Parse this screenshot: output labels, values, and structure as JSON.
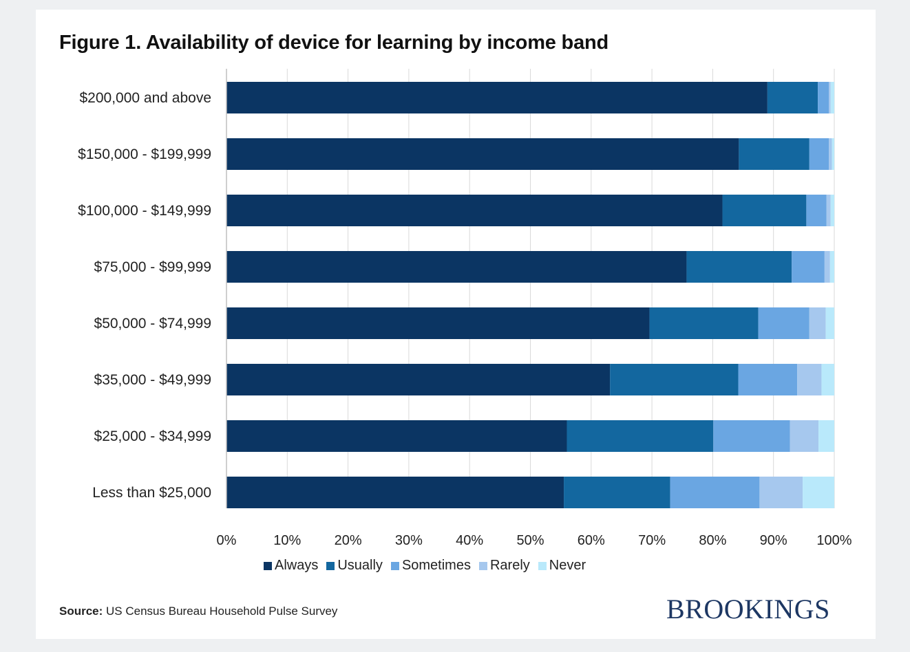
{
  "title": "Figure 1. Availability of device for learning by income band",
  "source_label": "Source:",
  "source_text": "US Census Bureau Household Pulse Survey",
  "logo_text": "BROOKINGS",
  "colors": {
    "Always": "#0b3563",
    "Usually": "#13679f",
    "Sometimes": "#6aa6e2",
    "Rarely": "#a6c8ee",
    "Never": "#b9e9fb",
    "grid": "#d9d9d9",
    "axis": "#bfbfbf"
  },
  "chart_data": {
    "type": "bar",
    "orientation": "horizontal",
    "stacked": true,
    "categories": [
      "$200,000 and above",
      "$150,000 - $199,999",
      "$100,000 - $149,999",
      "$75,000 - $99,999",
      "$50,000 - $74,999",
      "$35,000 - $49,999",
      "$25,000 - $34,999",
      "Less than $25,000"
    ],
    "series": [
      {
        "name": "Always",
        "values": [
          89,
          84.3,
          81.6,
          75.7,
          69.6,
          63.1,
          56,
          55.5
        ]
      },
      {
        "name": "Usually",
        "values": [
          8.3,
          11.6,
          13.8,
          17.3,
          17.9,
          21.1,
          24.1,
          17.5
        ]
      },
      {
        "name": "Sometimes",
        "values": [
          1.8,
          3.2,
          3.3,
          5.4,
          8.4,
          9.7,
          12.6,
          14.7
        ]
      },
      {
        "name": "Rarely",
        "values": [
          0.3,
          0.5,
          0.7,
          0.9,
          2.7,
          4,
          4.7,
          7.1
        ]
      },
      {
        "name": "Never",
        "values": [
          0.6,
          0.4,
          0.6,
          0.7,
          1.4,
          2.1,
          2.6,
          5.2
        ]
      }
    ],
    "xlim": [
      0,
      100
    ],
    "xticks": [
      "0%",
      "10%",
      "20%",
      "30%",
      "40%",
      "50%",
      "60%",
      "70%",
      "80%",
      "90%",
      "100%"
    ],
    "xlabel": "",
    "ylabel": "",
    "grid": true,
    "legend_position": "bottom"
  }
}
